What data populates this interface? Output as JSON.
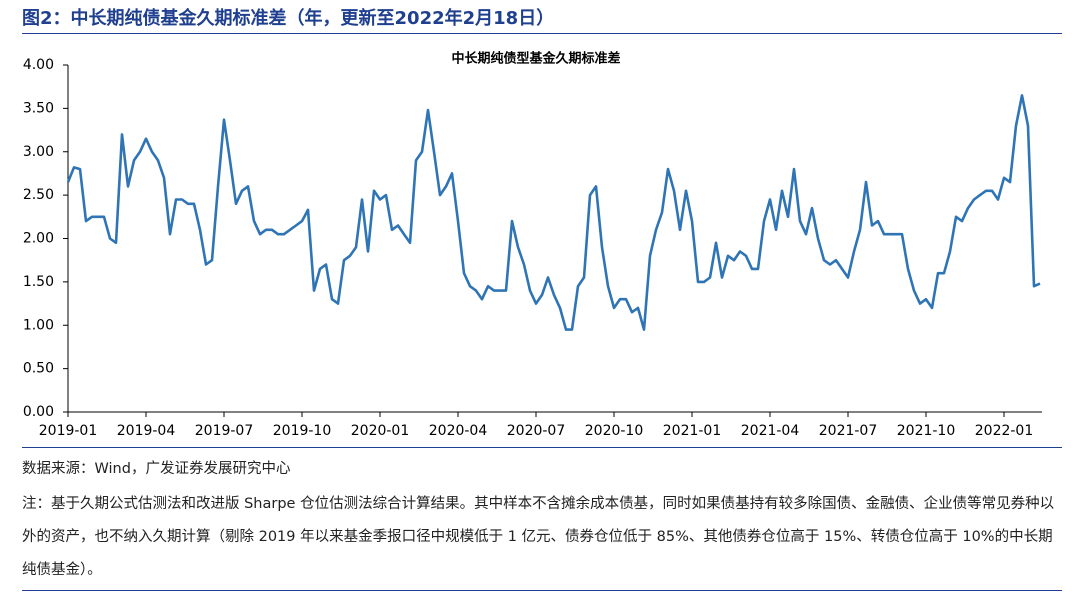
{
  "header": "图2：中长期纯债基金久期标准差（年，更新至2022年2月18日）",
  "source": "数据来源：Wind，广发证券发展研究中心",
  "note": "注：基于久期公式估测法和改进版 Sharpe 仓位估测法综合计算结果。其中样本不含摊余成本债基，同时如果债基持有较多除国债、金融债、企业债等常见券种以外的资产，也不纳入久期计算（剔除 2019 年以来基金季报口径中规模低于 1 亿元、债券仓位低于 85%、其他债券仓位高于 15%、转债仓位高于 10%的中长期纯债基金）。",
  "chart_data": {
    "type": "line",
    "title": "中长期纯债型基金久期标准差",
    "color": "#2f75b5",
    "categories": [
      "2019-01",
      null,
      null,
      null,
      null,
      null,
      null,
      null,
      null,
      null,
      null,
      null,
      null,
      "2019-04",
      null,
      null,
      null,
      null,
      null,
      null,
      null,
      null,
      null,
      null,
      null,
      null,
      "2019-07",
      null,
      null,
      null,
      null,
      null,
      null,
      null,
      null,
      null,
      null,
      null,
      null,
      "2019-10",
      null,
      null,
      null,
      null,
      null,
      null,
      null,
      null,
      null,
      null,
      null,
      null,
      "2020-01",
      null,
      null,
      null,
      null,
      null,
      null,
      null,
      null,
      null,
      null,
      null,
      null,
      "2020-04",
      null,
      null,
      null,
      null,
      null,
      null,
      null,
      null,
      null,
      null,
      null,
      null,
      "2020-07",
      null,
      null,
      null,
      null,
      null,
      null,
      null,
      null,
      null,
      null,
      null,
      null,
      "2020-10",
      null,
      null,
      null,
      null,
      null,
      null,
      null,
      null,
      null,
      null,
      null,
      null,
      "2021-01",
      null,
      null,
      null,
      null,
      null,
      null,
      null,
      null,
      null,
      null,
      null,
      null,
      "2021-04",
      null,
      null,
      null,
      null,
      null,
      null,
      null,
      null,
      null,
      null,
      null,
      null,
      "2021-07",
      null,
      null,
      null,
      null,
      null,
      null,
      null,
      null,
      null,
      null,
      null,
      null,
      "2021-10",
      null,
      null,
      null,
      null,
      null,
      null,
      null,
      null,
      null,
      null,
      null,
      null,
      "2022-01",
      null,
      null,
      null,
      null,
      null,
      null
    ],
    "values": [
      2.65,
      2.82,
      2.8,
      2.2,
      2.25,
      2.25,
      2.25,
      2.0,
      1.95,
      3.2,
      2.6,
      2.9,
      3.0,
      3.15,
      3.0,
      2.9,
      2.7,
      2.05,
      2.45,
      2.45,
      2.4,
      2.4,
      2.1,
      1.7,
      1.75,
      2.6,
      3.37,
      2.9,
      2.4,
      2.55,
      2.6,
      2.2,
      2.05,
      2.1,
      2.1,
      2.05,
      2.05,
      2.1,
      2.15,
      2.2,
      2.33,
      1.4,
      1.65,
      1.7,
      1.3,
      1.25,
      1.75,
      1.8,
      1.9,
      2.45,
      1.85,
      2.55,
      2.45,
      2.5,
      2.1,
      2.15,
      2.05,
      1.95,
      2.9,
      3.0,
      3.48,
      3.0,
      2.5,
      2.6,
      2.75,
      2.2,
      1.6,
      1.45,
      1.4,
      1.3,
      1.45,
      1.4,
      1.4,
      1.4,
      2.2,
      1.9,
      1.7,
      1.4,
      1.25,
      1.35,
      1.55,
      1.35,
      1.2,
      0.95,
      0.95,
      1.45,
      1.55,
      2.5,
      2.6,
      1.9,
      1.45,
      1.2,
      1.3,
      1.3,
      1.15,
      1.2,
      0.95,
      1.8,
      2.1,
      2.3,
      2.8,
      2.55,
      2.1,
      2.55,
      2.2,
      1.5,
      1.5,
      1.55,
      1.95,
      1.55,
      1.8,
      1.75,
      1.85,
      1.8,
      1.65,
      1.65,
      2.2,
      2.45,
      2.1,
      2.55,
      2.25,
      2.8,
      2.2,
      2.05,
      2.35,
      2.0,
      1.75,
      1.7,
      1.75,
      1.65,
      1.55,
      1.85,
      2.1,
      2.65,
      2.15,
      2.2,
      2.05,
      2.05,
      2.05,
      2.05,
      1.65,
      1.4,
      1.25,
      1.3,
      1.2,
      1.6,
      1.6,
      1.85,
      2.25,
      2.2,
      2.35,
      2.45,
      2.5,
      2.55,
      2.55,
      2.45,
      2.7,
      2.65,
      3.3,
      3.65,
      3.3,
      1.45,
      1.48
    ],
    "ylim": [
      0,
      4
    ],
    "yticks": [
      {
        "value": 0,
        "label": "0.00"
      },
      {
        "value": 0.5,
        "label": "0.50"
      },
      {
        "value": 1,
        "label": "1.00"
      },
      {
        "value": 1.5,
        "label": "1.50"
      },
      {
        "value": 2,
        "label": "2.00"
      },
      {
        "value": 2.5,
        "label": "2.50"
      },
      {
        "value": 3,
        "label": "3.00"
      },
      {
        "value": 3.5,
        "label": "3.50"
      },
      {
        "value": 4,
        "label": "4.00"
      }
    ],
    "grid": false
  }
}
